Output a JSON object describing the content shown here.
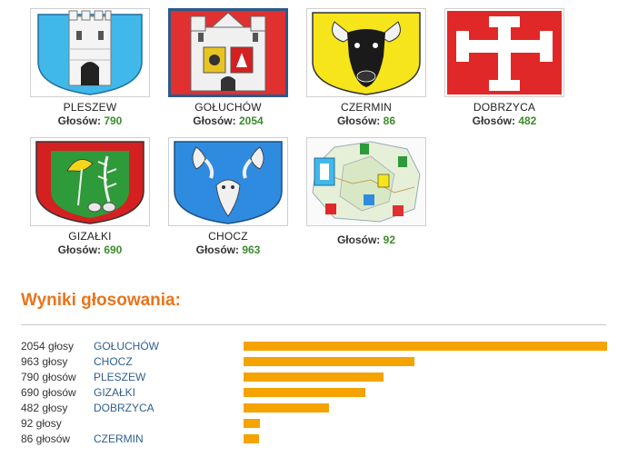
{
  "accent_color": "#e8741c",
  "bar_color": "#f5a300",
  "votes_color": "#3c8c2c",
  "candidates": [
    {
      "name": "PLESZEW",
      "votes_label": "Głosów:",
      "votes": "790",
      "icon": "pleszew-coat-of-arms"
    },
    {
      "name": "GOŁUCHÓW",
      "votes_label": "Głosów:",
      "votes": "2054",
      "icon": "goluchow-coat-of-arms"
    },
    {
      "name": "CZERMIN",
      "votes_label": "Głosów:",
      "votes": "86",
      "icon": "czermin-coat-of-arms"
    },
    {
      "name": "DOBRZYCA",
      "votes_label": "Głosów:",
      "votes": "482",
      "icon": "dobrzyca-coat-of-arms"
    },
    {
      "name": "GIZAŁKI",
      "votes_label": "Głosów:",
      "votes": "690",
      "icon": "gizalki-coat-of-arms"
    },
    {
      "name": "CHOCZ",
      "votes_label": "Głosów:",
      "votes": "963",
      "icon": "chocz-coat-of-arms"
    },
    {
      "name": "",
      "votes_label": "Głosów:",
      "votes": "92",
      "icon": "county-map"
    }
  ],
  "results": {
    "title": "Wyniki głosowania:",
    "max_votes": 2054,
    "rows": [
      {
        "count_label": "2054 głosy",
        "name": "GOŁUCHÓW",
        "votes": 2054
      },
      {
        "count_label": "963 głosy",
        "name": "CHOCZ",
        "votes": 963
      },
      {
        "count_label": "790 głosów",
        "name": "PLESZEW",
        "votes": 790
      },
      {
        "count_label": "690 głosów",
        "name": "GIZAŁKI",
        "votes": 690
      },
      {
        "count_label": "482 głosy",
        "name": "DOBRZYCA",
        "votes": 482
      },
      {
        "count_label": "92 głosy",
        "name": "",
        "votes": 92
      },
      {
        "count_label": "86 głosów",
        "name": "CZERMIN",
        "votes": 86
      }
    ]
  }
}
